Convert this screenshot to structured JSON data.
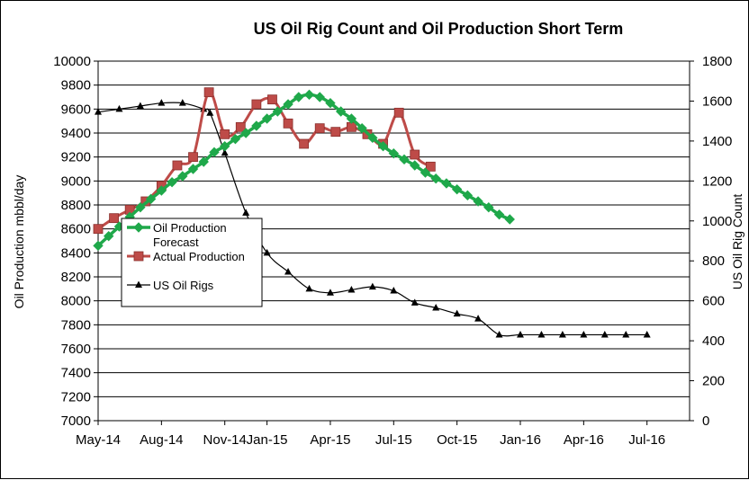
{
  "chart_data": {
    "type": "line",
    "title": "US Oil Rig Count and Oil Production Short Term",
    "ylabel_left": "Oil Production mbbl/day",
    "ylabel_right": "US Oil Rig Count",
    "ylim_left": [
      7000,
      10000
    ],
    "ylim_right": [
      0,
      1800
    ],
    "left_ticks": [
      7000,
      7200,
      7400,
      7600,
      7800,
      8000,
      8200,
      8400,
      8600,
      8800,
      9000,
      9200,
      9400,
      9600,
      9800,
      10000
    ],
    "right_ticks": [
      0,
      200,
      400,
      600,
      800,
      1000,
      1200,
      1400,
      1600,
      1800
    ],
    "x_ticks": [
      {
        "month": 0,
        "label": "May-14"
      },
      {
        "month": 3,
        "label": "Aug-14"
      },
      {
        "month": 6,
        "label": "Nov-14"
      },
      {
        "month": 8,
        "label": "Jan-15"
      },
      {
        "month": 11,
        "label": "Apr-15"
      },
      {
        "month": 14,
        "label": "Jul-15"
      },
      {
        "month": 17,
        "label": "Oct-15"
      },
      {
        "month": 20,
        "label": "Jan-16"
      },
      {
        "month": 23,
        "label": "Apr-16"
      },
      {
        "month": 26,
        "label": "Jul-16"
      }
    ],
    "grid": true,
    "legend_position": "left-middle",
    "series": [
      {
        "name": "Oil Production Forecast",
        "axis": "left",
        "color": "#1fa84a",
        "marker": "diamond",
        "points": [
          [
            0.0,
            8460
          ],
          [
            0.5,
            8540
          ],
          [
            1.0,
            8620
          ],
          [
            1.5,
            8700
          ],
          [
            2.0,
            8780
          ],
          [
            2.5,
            8850
          ],
          [
            3.0,
            8920
          ],
          [
            3.5,
            8990
          ],
          [
            4.0,
            9040
          ],
          [
            4.5,
            9100
          ],
          [
            5.0,
            9160
          ],
          [
            5.5,
            9240
          ],
          [
            6.0,
            9290
          ],
          [
            6.5,
            9350
          ],
          [
            7.0,
            9400
          ],
          [
            7.5,
            9460
          ],
          [
            8.0,
            9520
          ],
          [
            8.5,
            9580
          ],
          [
            9.0,
            9640
          ],
          [
            9.5,
            9700
          ],
          [
            10.0,
            9720
          ],
          [
            10.5,
            9700
          ],
          [
            11.0,
            9650
          ],
          [
            11.5,
            9580
          ],
          [
            12.0,
            9520
          ],
          [
            12.5,
            9440
          ],
          [
            13.0,
            9360
          ],
          [
            13.5,
            9290
          ],
          [
            14.0,
            9230
          ],
          [
            14.5,
            9180
          ],
          [
            15.0,
            9130
          ],
          [
            15.5,
            9070
          ],
          [
            16.0,
            9020
          ],
          [
            16.5,
            8980
          ],
          [
            17.0,
            8930
          ],
          [
            17.5,
            8880
          ],
          [
            18.0,
            8830
          ],
          [
            18.5,
            8780
          ],
          [
            19.0,
            8720
          ],
          [
            19.5,
            8680
          ]
        ]
      },
      {
        "name": "Actual Production",
        "axis": "left",
        "color": "#be4b48",
        "marker": "square",
        "points": [
          [
            0.0,
            8600
          ],
          [
            0.75,
            8690
          ],
          [
            1.5,
            8760
          ],
          [
            2.25,
            8830
          ],
          [
            3.0,
            8960
          ],
          [
            3.75,
            9130
          ],
          [
            4.5,
            9200
          ],
          [
            5.25,
            9740
          ],
          [
            6.0,
            9390
          ],
          [
            6.75,
            9450
          ],
          [
            7.5,
            9640
          ],
          [
            8.25,
            9680
          ],
          [
            9.0,
            9480
          ],
          [
            9.75,
            9310
          ],
          [
            10.5,
            9440
          ],
          [
            11.25,
            9410
          ],
          [
            12.0,
            9450
          ],
          [
            12.75,
            9390
          ],
          [
            13.5,
            9310
          ],
          [
            14.25,
            9570
          ],
          [
            15.0,
            9220
          ],
          [
            15.75,
            9120
          ]
        ]
      },
      {
        "name": "US Oil Rigs",
        "axis": "right",
        "color": "#000000",
        "marker": "triangle",
        "points": [
          [
            0.0,
            1545
          ],
          [
            1.0,
            1560
          ],
          [
            2.0,
            1575
          ],
          [
            3.0,
            1590
          ],
          [
            4.0,
            1590
          ],
          [
            5.0,
            1560
          ],
          [
            5.3,
            1540
          ],
          [
            6.0,
            1340
          ],
          [
            7.0,
            1040
          ],
          [
            8.0,
            840
          ],
          [
            9.0,
            745
          ],
          [
            10.0,
            660
          ],
          [
            11.0,
            640
          ],
          [
            12.0,
            655
          ],
          [
            13.0,
            670
          ],
          [
            14.0,
            650
          ],
          [
            15.0,
            590
          ],
          [
            16.0,
            565
          ],
          [
            17.0,
            535
          ],
          [
            18.0,
            510
          ],
          [
            19.0,
            430
          ],
          [
            20.0,
            430
          ],
          [
            21.0,
            430
          ],
          [
            22.0,
            430
          ],
          [
            23.0,
            430
          ],
          [
            24.0,
            430
          ],
          [
            25.0,
            430
          ],
          [
            26.0,
            430
          ]
        ]
      }
    ],
    "legend": [
      {
        "label_lines": [
          "Oil Production",
          "Forecast"
        ],
        "series": 0
      },
      {
        "label_lines": [
          "Actual Production"
        ],
        "series": 1
      },
      {
        "label_lines": [
          "US Oil Rigs"
        ],
        "series": 2
      }
    ]
  }
}
